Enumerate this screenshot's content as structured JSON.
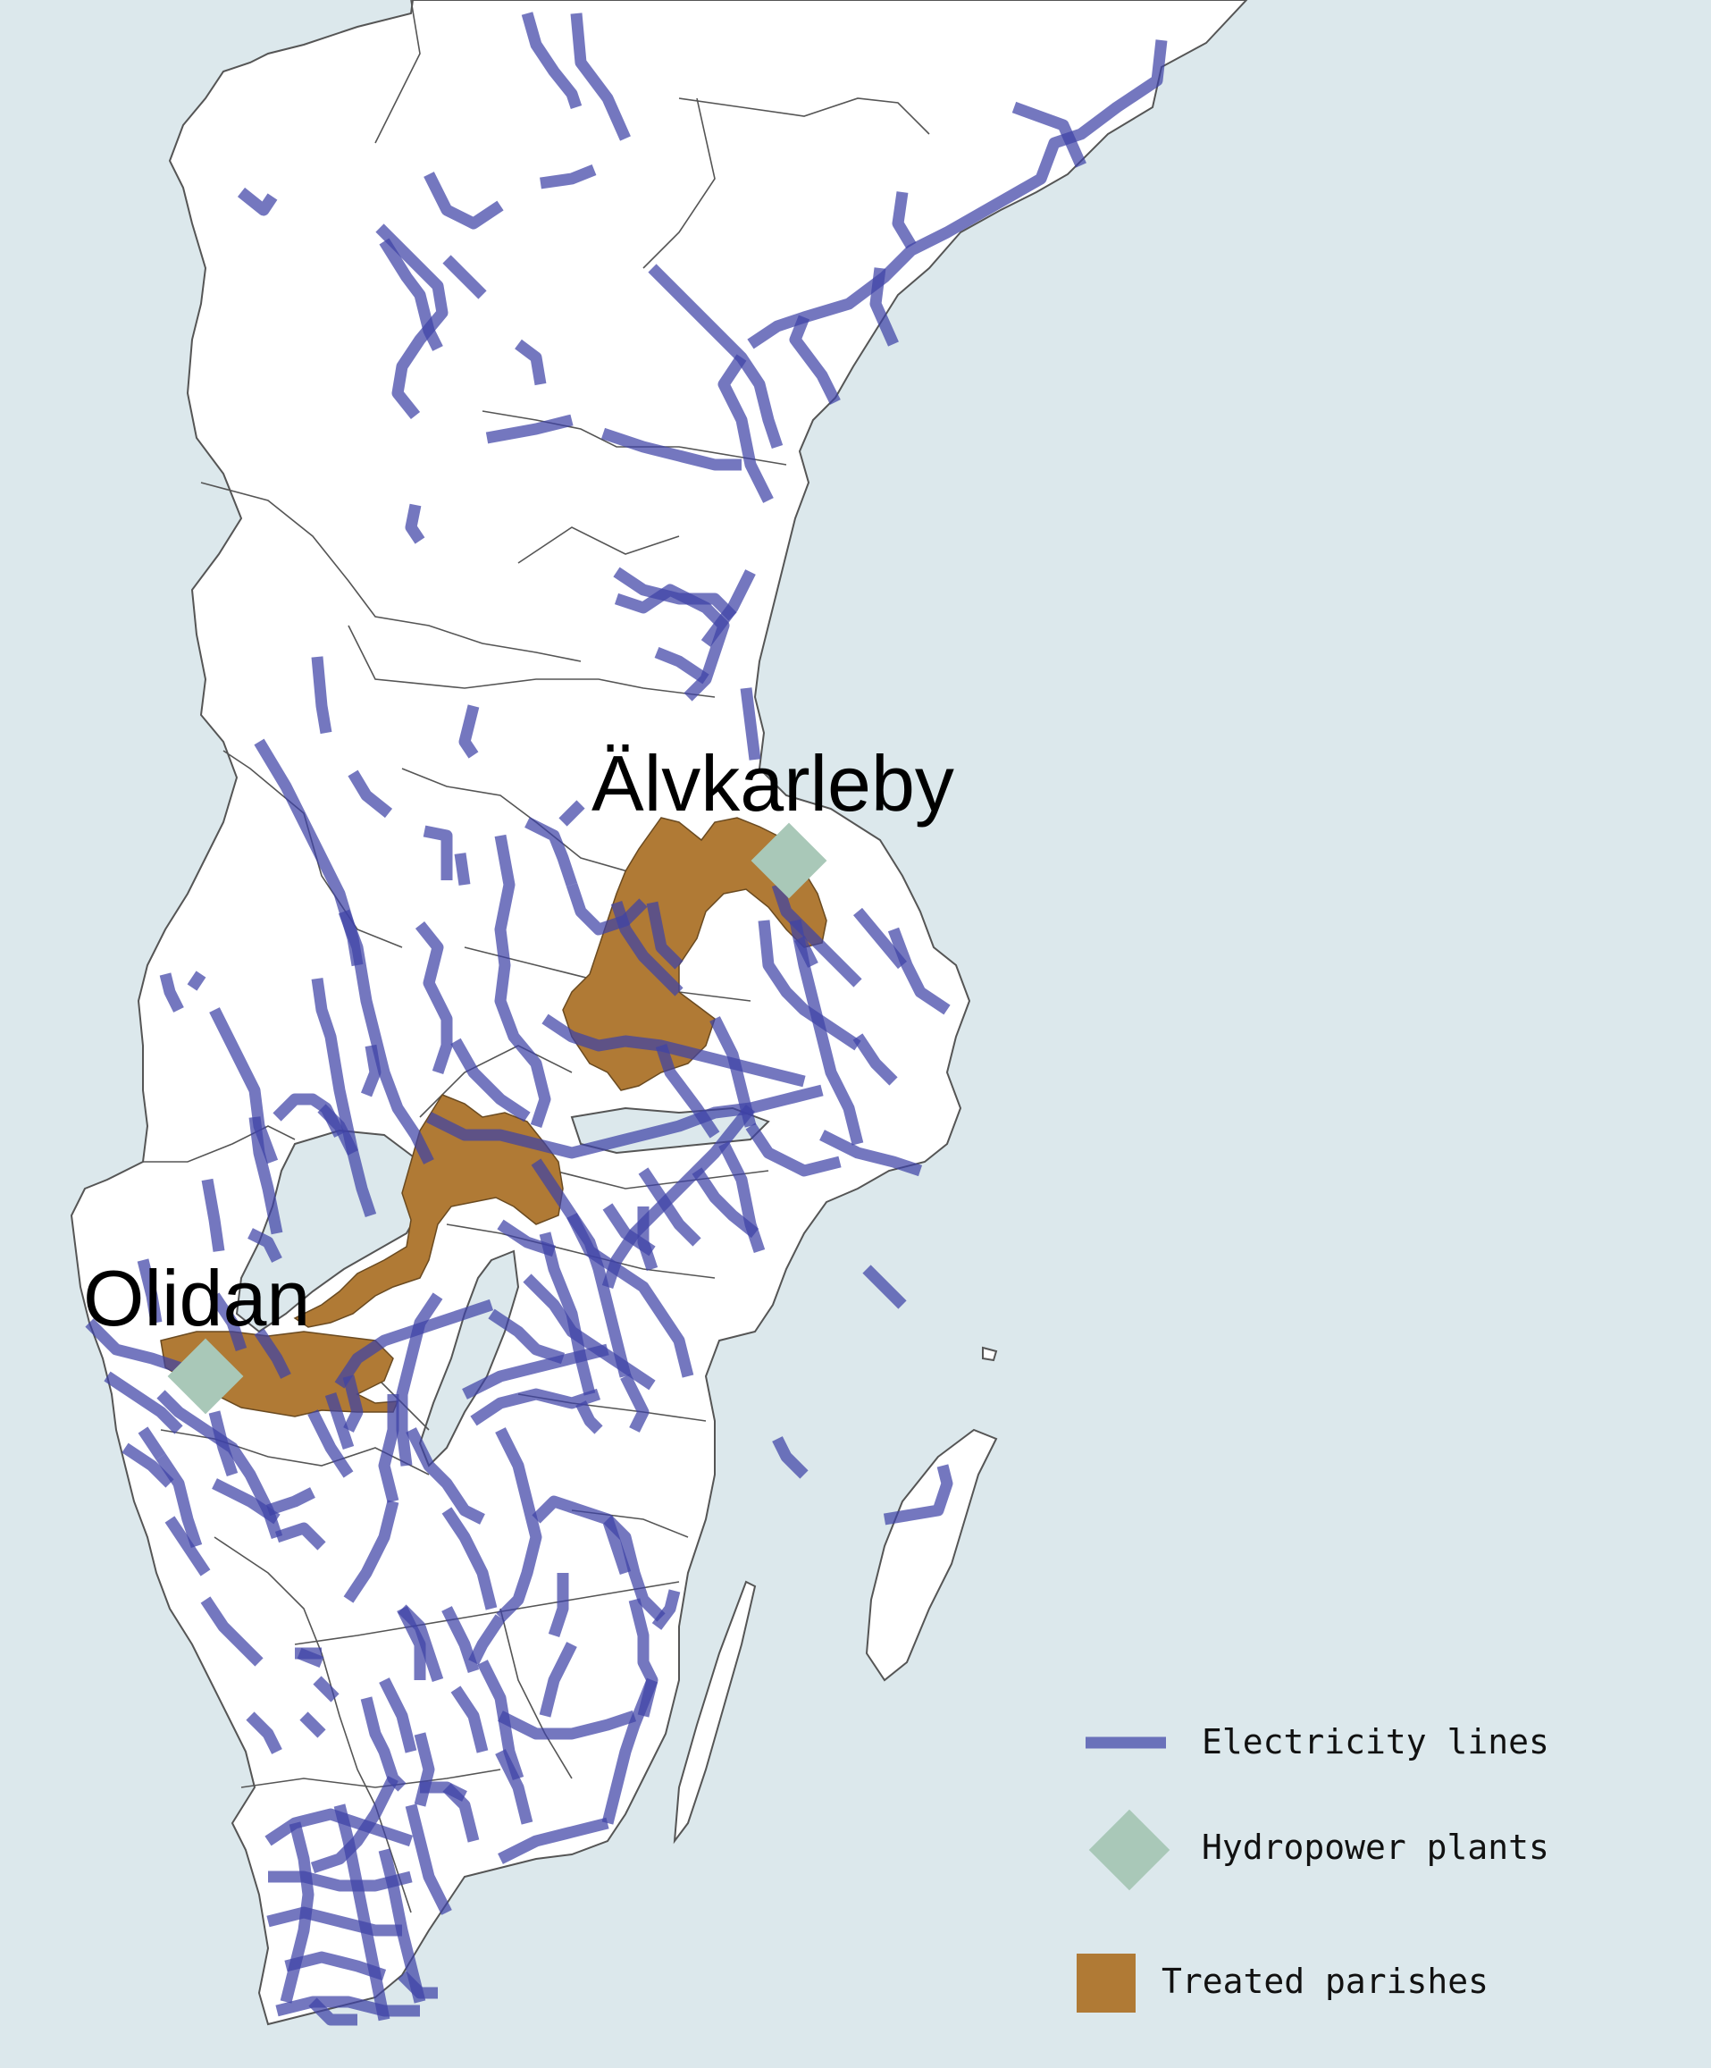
{
  "map": {
    "colors": {
      "sea": "#dce8ec",
      "land": "#ffffff",
      "border": "#555555",
      "lines": "#3f42a6",
      "plants": "#a9c8b8",
      "parishes": "#b07a35"
    },
    "places": [
      {
        "name": "Älvkarleby",
        "marker": "hydropower-plant"
      },
      {
        "name": "Olidan",
        "marker": "hydropower-plant"
      }
    ]
  },
  "legend": {
    "items": [
      {
        "key": "lines",
        "label": "Electricity lines",
        "icon": "line-swatch"
      },
      {
        "key": "plants",
        "label": "Hydropower plants",
        "icon": "diamond"
      },
      {
        "key": "parishes",
        "label": "Treated parishes",
        "icon": "square"
      }
    ]
  }
}
